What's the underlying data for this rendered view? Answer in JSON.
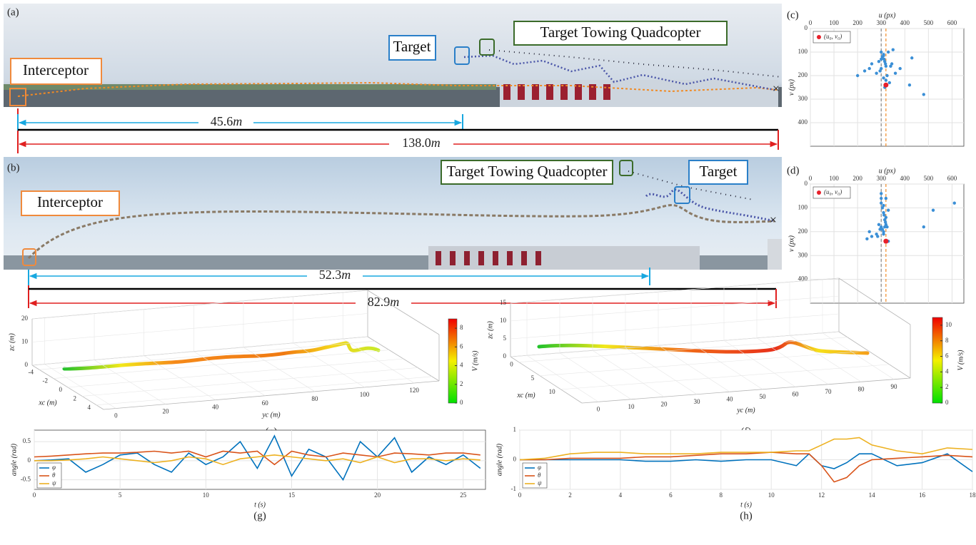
{
  "figure": {
    "a": {
      "label": "(a)",
      "interceptor": "Interceptor",
      "target": "Target",
      "towing": "Target Towing Quadcopter",
      "dist_near": {
        "value": "45.6",
        "unit": "m"
      },
      "dist_far": {
        "value": "138.0",
        "unit": "m"
      }
    },
    "b": {
      "label": "(b)",
      "interceptor": "Interceptor",
      "target": "Target",
      "towing": "Target Towing Quadcopter",
      "dist_near": {
        "value": "52.3",
        "unit": "m"
      },
      "dist_far": {
        "value": "82.9",
        "unit": "m"
      }
    }
  },
  "chart_data": [
    {
      "type": "scatter",
      "label": "(c)",
      "xlabel": "u (px)",
      "ylabel": "v (px)",
      "xlim": [
        0,
        650
      ],
      "ylim": [
        0,
        500
      ],
      "yreverse": true,
      "xticks": [
        0,
        100,
        200,
        300,
        400,
        500,
        600
      ],
      "yticks": [
        0,
        100,
        200,
        300,
        400
      ],
      "grid": true,
      "legend": "upper left",
      "vlines": [
        {
          "value": 300,
          "color": "#888888"
        },
        {
          "value": 320,
          "color": "#f08a24"
        }
      ],
      "series": [
        {
          "color": "#3b8fd6",
          "x": [
            300,
            305,
            310,
            312,
            315,
            318,
            320,
            300,
            295,
            310,
            330,
            340,
            325,
            350,
            380,
            430,
            260,
            200,
            230,
            250,
            280,
            310,
            320,
            335,
            345,
            300,
            290,
            315,
            360,
            480,
            420,
            305
          ],
          "values": [
            100,
            120,
            110,
            130,
            140,
            150,
            160,
            170,
            180,
            115,
            100,
            160,
            200,
            90,
            170,
            125,
            150,
            200,
            180,
            170,
            190,
            210,
            220,
            230,
            150,
            130,
            140,
            250,
            190,
            280,
            240,
            120
          ]
        },
        {
          "name": "(u₀, v₀)",
          "color": "#e8202a",
          "x": [
            320
          ],
          "values": [
            240
          ]
        }
      ]
    },
    {
      "type": "scatter",
      "label": "(d)",
      "xlabel": "u (px)",
      "ylabel": "v (px)",
      "xlim": [
        0,
        650
      ],
      "ylim": [
        0,
        500
      ],
      "yreverse": true,
      "xticks": [
        0,
        100,
        200,
        300,
        400,
        500,
        600
      ],
      "yticks": [
        0,
        100,
        200,
        300,
        400
      ],
      "grid": true,
      "legend": "upper left",
      "vlines": [
        {
          "value": 300,
          "color": "#888888"
        },
        {
          "value": 320,
          "color": "#f08a24"
        }
      ],
      "series": [
        {
          "color": "#3b8fd6",
          "x": [
            300,
            305,
            310,
            312,
            315,
            318,
            320,
            300,
            295,
            310,
            330,
            320,
            325,
            310,
            250,
            240,
            260,
            280,
            290,
            305,
            315,
            520,
            610,
            480,
            300,
            310,
            320,
            300,
            285,
            330
          ],
          "values": [
            80,
            100,
            120,
            130,
            150,
            160,
            170,
            180,
            190,
            200,
            110,
            140,
            180,
            210,
            200,
            230,
            220,
            210,
            170,
            190,
            180,
            110,
            80,
            180,
            60,
            90,
            60,
            40,
            220,
            240
          ]
        },
        {
          "name": "(u₀, v₀)",
          "color": "#e8202a",
          "x": [
            320
          ],
          "values": [
            240
          ]
        }
      ]
    },
    {
      "type": "line3d",
      "label": "(e)",
      "xlabel": "xc (m)",
      "ylabel": "yc (m)",
      "zlabel": "zc (m)",
      "colorbar_label": "V (m/s)",
      "xlim": [
        -5,
        5
      ],
      "xticks": [
        -4,
        -2,
        0,
        2,
        4
      ],
      "ylim": [
        -5,
        130
      ],
      "yticks": [
        0,
        20,
        40,
        60,
        80,
        100,
        120
      ],
      "zlim": [
        0,
        20
      ],
      "zticks": [
        0,
        10,
        20
      ],
      "clim": [
        0,
        9
      ],
      "cticks": [
        0,
        2,
        4,
        6,
        8
      ]
    },
    {
      "type": "line3d",
      "label": "(f)",
      "xlabel": "xc (m)",
      "ylabel": "yc (m)",
      "zlabel": "zc (m)",
      "colorbar_label": "V (m/s)",
      "xlim": [
        -2,
        15
      ],
      "xticks": [
        0,
        5,
        10
      ],
      "ylim": [
        -5,
        95
      ],
      "yticks": [
        0,
        10,
        20,
        30,
        40,
        50,
        60,
        70,
        80,
        90
      ],
      "zlim": [
        0,
        15
      ],
      "zticks": [
        0,
        5,
        10,
        15
      ],
      "clim": [
        0,
        11
      ],
      "cticks": [
        0,
        2,
        4,
        6,
        8,
        10
      ]
    },
    {
      "type": "line",
      "label": "(g)",
      "xlabel": "t (s)",
      "ylabel": "angle (rad)",
      "xlim": [
        0,
        26.3
      ],
      "xticks": [
        0,
        5,
        10,
        15,
        20,
        25
      ],
      "ylim": [
        -0.75,
        0.8
      ],
      "yticks": [
        -0.5,
        0,
        0.5
      ],
      "grid": true,
      "legend": "lower left",
      "x": [
        0,
        1,
        2,
        3,
        4,
        5,
        6,
        7,
        8,
        9,
        10,
        11,
        12,
        13,
        14,
        15,
        16,
        17,
        18,
        19,
        20,
        21,
        22,
        23,
        24,
        25,
        26
      ],
      "series": [
        {
          "name": "φ",
          "color": "#0072bd",
          "values": [
            0,
            0.02,
            0.05,
            -0.3,
            -0.1,
            0.15,
            0.2,
            -0.1,
            -0.3,
            0.2,
            -0.1,
            0.1,
            0.5,
            -0.2,
            0.65,
            -0.4,
            0.3,
            0.1,
            -0.5,
            0.5,
            0.1,
            0.6,
            -0.3,
            0.1,
            -0.1,
            0.15,
            -0.2
          ]
        },
        {
          "name": "θ",
          "color": "#d95319",
          "values": [
            0.1,
            0.12,
            0.15,
            0.18,
            0.2,
            0.2,
            0.22,
            0.25,
            0.2,
            0.25,
            0.1,
            0.25,
            0.2,
            0.25,
            -0.1,
            0.25,
            0.15,
            0.1,
            0.2,
            0.15,
            0.1,
            0.2,
            0.18,
            0.15,
            0.2,
            0.2,
            0.15
          ]
        },
        {
          "name": "ψ",
          "color": "#edb120",
          "values": [
            0,
            0,
            0.02,
            0.05,
            0.1,
            0.05,
            0,
            -0.05,
            0,
            0.1,
            0.05,
            -0.1,
            0.05,
            0.1,
            0.15,
            0.1,
            0.05,
            0,
            0.05,
            -0.05,
            0.1,
            -0.05,
            0.05,
            0.05,
            0,
            0.05,
            0.02
          ]
        }
      ]
    },
    {
      "type": "line",
      "label": "(h)",
      "xlabel": "t (s)",
      "ylabel": "angle (rad)",
      "xlim": [
        0,
        18
      ],
      "xticks": [
        0,
        2,
        4,
        6,
        8,
        10,
        12,
        14,
        16,
        18
      ],
      "ylim": [
        -1,
        1
      ],
      "yticks": [
        -1,
        0,
        1
      ],
      "grid": true,
      "legend": "lower left",
      "x": [
        0,
        1,
        2,
        3,
        4,
        5,
        6,
        7,
        8,
        9,
        10,
        11,
        11.5,
        12,
        12.5,
        13,
        13.5,
        14,
        15,
        16,
        17,
        18
      ],
      "series": [
        {
          "name": "φ",
          "color": "#0072bd",
          "values": [
            0,
            0,
            0,
            0,
            0,
            -0.05,
            -0.05,
            0,
            -0.05,
            0,
            0,
            -0.2,
            0.2,
            -0.2,
            -0.3,
            -0.1,
            0.2,
            0.2,
            -0.2,
            -0.1,
            0.2,
            -0.4
          ]
        },
        {
          "name": "θ",
          "color": "#d95319",
          "values": [
            0,
            0,
            0.05,
            0.05,
            0.05,
            0.1,
            0.1,
            0.15,
            0.2,
            0.2,
            0.25,
            0.2,
            0.2,
            -0.2,
            -0.75,
            -0.6,
            -0.2,
            0,
            0.05,
            0.1,
            0.15,
            0.1
          ]
        },
        {
          "name": "ψ",
          "color": "#edb120",
          "values": [
            0,
            0.05,
            0.2,
            0.25,
            0.25,
            0.2,
            0.2,
            0.2,
            0.25,
            0.25,
            0.25,
            0.3,
            0.3,
            0.5,
            0.7,
            0.7,
            0.75,
            0.5,
            0.3,
            0.2,
            0.4,
            0.35
          ]
        }
      ]
    }
  ]
}
